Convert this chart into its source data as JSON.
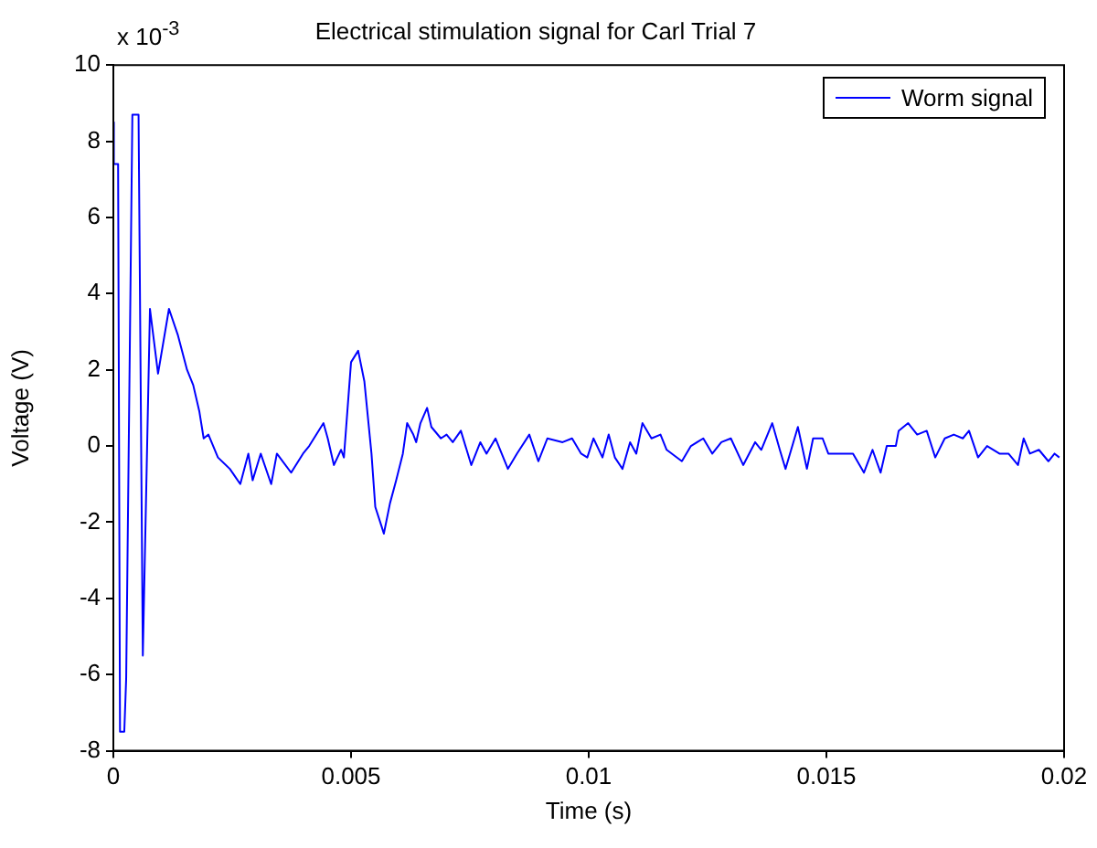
{
  "chart_data": {
    "type": "line",
    "title": "Electrical stimulation signal for Carl Trial 7",
    "xlabel": "Time (s)",
    "ylabel": "Voltage (V)",
    "annotations": [
      "x 10$^{-3}$"
    ],
    "x": [
      0,
      1e-05,
      0.0001,
      0.00014,
      0.00023,
      0.00027,
      0.0003,
      0.0004,
      0.00053,
      0.00062,
      0.00077,
      0.00094,
      0.00117,
      0.00136,
      0.00155,
      0.00168,
      0.00181,
      0.0019,
      0.002,
      0.0022,
      0.00245,
      0.00267,
      0.00284,
      0.00293,
      0.0031,
      0.00332,
      0.00344,
      0.00374,
      0.00399,
      0.00412,
      0.00442,
      0.00451,
      0.00464,
      0.00479,
      0.00485,
      0.005,
      0.00515,
      0.00528,
      0.00543,
      0.00551,
      0.00564,
      0.00569,
      0.00582,
      0.00595,
      0.00609,
      0.00618,
      0.00631,
      0.00637,
      0.00646,
      0.0066,
      0.00669,
      0.00689,
      0.00701,
      0.00714,
      0.00731,
      0.00753,
      0.00772,
      0.00785,
      0.00804,
      0.0083,
      0.00849,
      0.00875,
      0.00894,
      0.00913,
      0.00945,
      0.00965,
      0.00984,
      0.00997,
      0.0101,
      0.01029,
      0.01042,
      0.01055,
      0.01071,
      0.01087,
      0.011,
      0.01113,
      0.01132,
      0.01151,
      0.01164,
      0.01196,
      0.01215,
      0.01241,
      0.0126,
      0.01279,
      0.01299,
      0.01325,
      0.0135,
      0.01363,
      0.01386,
      0.01402,
      0.01414,
      0.0144,
      0.01459,
      0.01472,
      0.01492,
      0.01504,
      0.0153,
      0.01556,
      0.01579,
      0.01597,
      0.01614,
      0.01627,
      0.01646,
      0.01652,
      0.01672,
      0.01691,
      0.01711,
      0.01729,
      0.01749,
      0.01768,
      0.01787,
      0.018,
      0.01819,
      0.01838,
      0.01864,
      0.01883,
      0.01903,
      0.01915,
      0.01928,
      0.01947,
      0.01967,
      0.0198,
      0.0199
    ],
    "series": [
      {
        "name": "Worm signal",
        "color": "#0000ff",
        "values": [
          8.5,
          7.4,
          7.4,
          -7.5,
          -7.5,
          -6.1,
          -6.1,
          8.7,
          8.7,
          -5.5,
          3.6,
          1.9,
          3.6,
          2.9,
          2,
          1.6,
          0.9,
          0.2,
          0.3,
          -0.3,
          -0.6,
          -1,
          -0.2,
          -0.9,
          -0.2,
          -1,
          -0.2,
          -0.7,
          -0.2,
          0,
          0.6,
          0.2,
          -0.5,
          -0.1,
          -0.3,
          2.2,
          2.5,
          1.7,
          -0.2,
          -1.6,
          -2.1,
          -2.3,
          -1.5,
          -0.9,
          -0.2,
          0.6,
          0.3,
          0.1,
          0.6,
          1,
          0.5,
          0.2,
          0.3,
          0.1,
          0.4,
          -0.5,
          0.1,
          -0.2,
          0.2,
          -0.6,
          -0.2,
          0.3,
          -0.4,
          0.2,
          0.1,
          0.2,
          -0.2,
          -0.3,
          0.2,
          -0.3,
          0.3,
          -0.3,
          -0.6,
          0.1,
          -0.2,
          0.6,
          0.2,
          0.3,
          -0.1,
          -0.4,
          0,
          0.2,
          -0.2,
          0.1,
          0.2,
          -0.5,
          0.1,
          -0.1,
          0.6,
          -0.1,
          -0.6,
          0.5,
          -0.6,
          0.2,
          0.2,
          -0.2,
          -0.2,
          -0.2,
          -0.7,
          -0.1,
          -0.7,
          0,
          0,
          0.4,
          0.6,
          0.3,
          0.4,
          -0.3,
          0.2,
          0.3,
          0.2,
          0.4,
          -0.3,
          0,
          -0.2,
          -0.2,
          -0.5,
          0.2,
          -0.2,
          -0.1,
          -0.4,
          -0.2,
          -0.3
        ]
      }
    ],
    "xlim": [
      0,
      0.02
    ],
    "xticks": [
      0,
      0.005,
      0.01,
      0.015,
      0.02
    ],
    "ylim": [
      -8,
      10
    ],
    "yticks": [
      -8,
      -6,
      -4,
      -2,
      0,
      2,
      4,
      6,
      8,
      10
    ],
    "legend": "top right",
    "grid": false,
    "marker": "none",
    "line_style": "solid"
  }
}
